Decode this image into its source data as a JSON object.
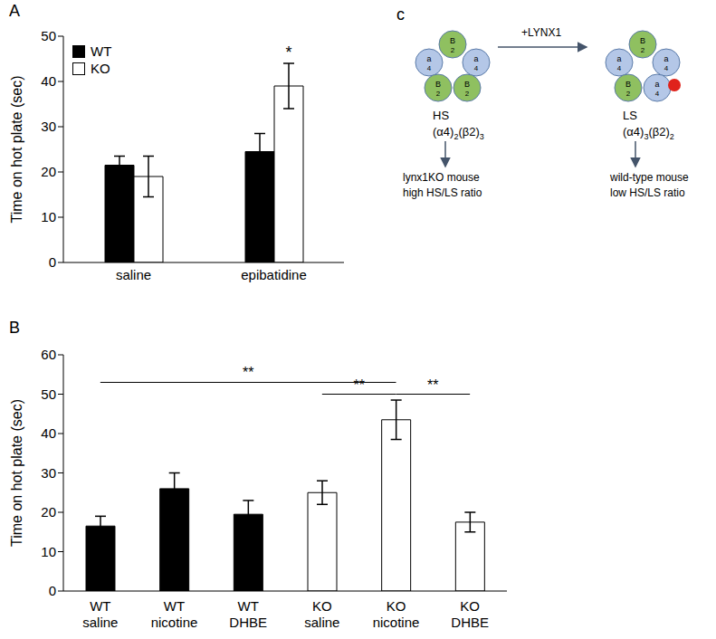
{
  "chart_data": [
    {
      "type": "bar",
      "panel_label": "A",
      "categories": [
        "saline",
        "epibatidine"
      ],
      "series": [
        {
          "name": "WT",
          "color": "#000000",
          "values": [
            21.5,
            24.5
          ],
          "errors": [
            2,
            4
          ]
        },
        {
          "name": "KO",
          "color": "#ffffff",
          "values": [
            19,
            39
          ],
          "errors": [
            4.5,
            5
          ]
        }
      ],
      "y_label": "Time on hot plate (sec)",
      "ylim": [
        0,
        50
      ],
      "yticks": [
        0,
        10,
        20,
        30,
        40,
        50
      ],
      "legend": "upper left",
      "annotations": [
        {
          "text": "*",
          "category": "epibatidine",
          "series": "KO"
        }
      ]
    },
    {
      "type": "bar",
      "panel_label": "B",
      "categories": [
        "WT saline",
        "WT nicotine",
        "WT DHBE",
        "KO saline",
        "KO nicotine",
        "KO DHBE"
      ],
      "values": [
        16.5,
        26,
        19.5,
        25,
        43.5,
        17.5
      ],
      "errors": [
        2.5,
        4,
        3.5,
        3,
        5,
        2.5
      ],
      "colors": [
        "#000000",
        "#000000",
        "#000000",
        "#ffffff",
        "#ffffff",
        "#ffffff"
      ],
      "y_label": "Time on hot plate (sec)",
      "ylim": [
        0,
        60
      ],
      "yticks": [
        0,
        10,
        20,
        30,
        40,
        50,
        60
      ],
      "annotations": [
        {
          "text": "**",
          "from": "WT saline",
          "to": "KO nicotine",
          "y": 53
        },
        {
          "text": "**",
          "from": "KO saline",
          "to": "KO nicotine",
          "y": 50
        },
        {
          "text": "**",
          "from": "KO nicotine",
          "to": "KO DHBE",
          "y": 50
        }
      ]
    }
  ],
  "diagram": {
    "panel_label": "c",
    "arrow_label": "+LYNX1",
    "subunit_colors": {
      "a4": "#b4c7e7",
      "B2": "#8fc060"
    },
    "modulator_color": "#e0231b",
    "complexes": [
      {
        "name": "HS",
        "subunits": [
          "B2",
          "a4",
          "a4",
          "B2",
          "B2"
        ],
        "formula": [
          {
            "text": "(α4)",
            "sub": "2"
          },
          {
            "text": "(β2)",
            "sub": "3"
          }
        ],
        "notes": [
          "lynx1KO mouse",
          "high HS/LS ratio"
        ],
        "lynx1": false
      },
      {
        "name": "LS",
        "subunits": [
          "B2",
          "a4",
          "a4",
          "B2",
          "a4"
        ],
        "formula": [
          {
            "text": "(α4)",
            "sub": "3"
          },
          {
            "text": "(β2)",
            "sub": "2"
          }
        ],
        "notes": [
          "wild-type mouse",
          "low HS/LS ratio"
        ],
        "lynx1": true
      }
    ]
  }
}
